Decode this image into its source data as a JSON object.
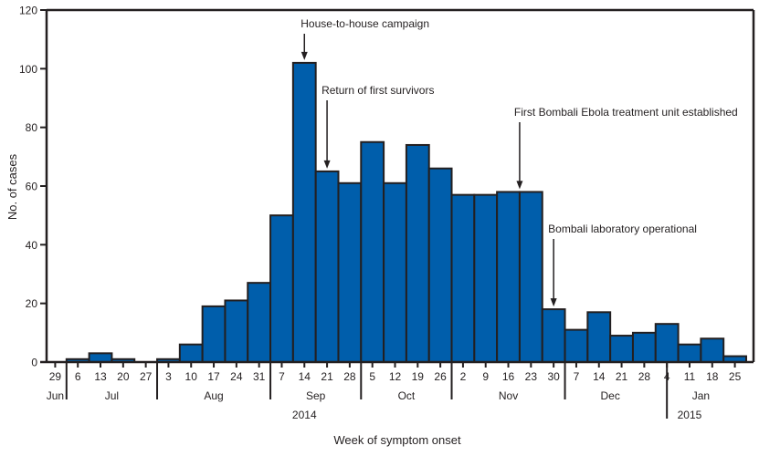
{
  "chart_data": {
    "type": "bar",
    "title": "",
    "xlabel": "Week of symptom onset",
    "ylabel": "No. of cases",
    "ylim": [
      0,
      120
    ],
    "yticks": [
      0,
      20,
      40,
      60,
      80,
      100,
      120
    ],
    "grid": false,
    "bar_color": "#005eab",
    "edge_color": "#231f20",
    "categories": [
      "29",
      "6",
      "13",
      "20",
      "27",
      "3",
      "10",
      "17",
      "24",
      "31",
      "7",
      "14",
      "21",
      "28",
      "5",
      "12",
      "19",
      "26",
      "2",
      "9",
      "16",
      "23",
      "30",
      "7",
      "14",
      "21",
      "28",
      "4",
      "11",
      "18",
      "25"
    ],
    "values": [
      0,
      1,
      3,
      1,
      0,
      1,
      6,
      19,
      21,
      27,
      50,
      102,
      65,
      61,
      75,
      61,
      74,
      66,
      57,
      57,
      58,
      58,
      18,
      11,
      17,
      9,
      10,
      13,
      6,
      8,
      2
    ],
    "months": [
      {
        "label": "Jun",
        "start": 0,
        "end": 1
      },
      {
        "label": "Jul",
        "start": 1,
        "end": 5
      },
      {
        "label": "Aug",
        "start": 5,
        "end": 10
      },
      {
        "label": "Sep",
        "start": 10,
        "end": 14
      },
      {
        "label": "Oct",
        "start": 14,
        "end": 18
      },
      {
        "label": "Nov",
        "start": 18,
        "end": 23
      },
      {
        "label": "Dec",
        "start": 23,
        "end": 27
      },
      {
        "label": "Jan",
        "start": 27,
        "end": 31
      }
    ],
    "month_separators": [
      1,
      5,
      10,
      14,
      18,
      23
    ],
    "year_separator": 27.5,
    "years": [
      {
        "label": "2014",
        "center": 11.5
      },
      {
        "label": "2015",
        "center": 28.5
      }
    ],
    "annotations": [
      {
        "text": "House-to-house campaign",
        "week_index": 11,
        "value": 102
      },
      {
        "text": "Return of first survivors",
        "week_index": 12,
        "value": 65
      },
      {
        "text": "First Bombali Ebola treatment unit established",
        "week_index": 20.5,
        "value": 58
      },
      {
        "text": "Bombali laboratory operational",
        "week_index": 22,
        "value": 18
      }
    ]
  }
}
